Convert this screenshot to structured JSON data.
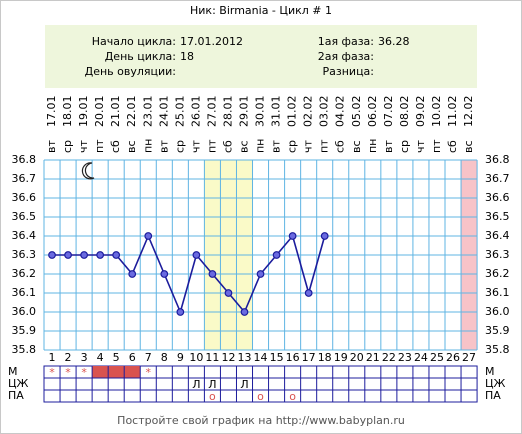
{
  "chart_data": {
    "type": "line",
    "title": "Ник: Birmania - Цикл # 1",
    "info_left": [
      {
        "label": "Начало цикла:",
        "value": "17.01.2012"
      },
      {
        "label": "День цикла:",
        "value": 18
      },
      {
        "label": "День овуляции:",
        "value": null
      }
    ],
    "info_right": [
      {
        "label": "1ая фаза:",
        "value": 36.28
      },
      {
        "label": "2ая фаза:",
        "value": null
      },
      {
        "label": "Разница:",
        "value": null
      }
    ],
    "categories": [
      1,
      2,
      3,
      4,
      5,
      6,
      7,
      8,
      9,
      10,
      11,
      12,
      13,
      14,
      15,
      16,
      17,
      18,
      19,
      20,
      21,
      22,
      23,
      24,
      25,
      26,
      27
    ],
    "dates": [
      "17.01",
      "18.01",
      "19.01",
      "20.01",
      "21.01",
      "22.01",
      "23.01",
      "24.01",
      "25.01",
      "26.01",
      "27.01",
      "28.01",
      "29.01",
      "30.01",
      "31.01",
      "01.02",
      "02.02",
      "03.02",
      "04.02",
      "05.02",
      "06.02",
      "07.02",
      "08.02",
      "09.02",
      "10.02",
      "11.02",
      "12.02"
    ],
    "weekdays": [
      "вт",
      "ср",
      "чт",
      "пт",
      "сб",
      "вс",
      "пн",
      "вт",
      "ср",
      "чт",
      "пт",
      "сб",
      "вс",
      "пн",
      "вт",
      "ср",
      "чт",
      "пт",
      "сб",
      "вс",
      "пн",
      "вт",
      "ср",
      "чт",
      "пт",
      "сб",
      "вс"
    ],
    "values": [
      36.3,
      36.3,
      36.3,
      36.3,
      36.3,
      36.2,
      36.4,
      36.2,
      36.0,
      36.3,
      36.2,
      36.1,
      36.0,
      36.2,
      36.3,
      36.4,
      36.1,
      36.4,
      null,
      null,
      null,
      null,
      null,
      null,
      null,
      null,
      null
    ],
    "color": "#1c1c9c",
    "ylim": [
      35.8,
      36.8
    ],
    "yticks": [
      35.8,
      35.9,
      {
        "value": 36,
        "label": "36.0"
      },
      36.1,
      36.2,
      36.3,
      36.4,
      36.5,
      36.6,
      36.7,
      36.8
    ],
    "grid": true,
    "highlight_days": [
      11,
      12,
      13
    ],
    "highlight_color": "#fafac8",
    "end_days": [
      27
    ],
    "end_color": "#f7c3c8",
    "rows": [
      {
        "name": "М",
        "marks": [
          {
            "day": 1,
            "label": "*"
          },
          {
            "day": 2,
            "label": "*"
          },
          {
            "day": 3,
            "label": "*"
          },
          {
            "day": 7,
            "label": "*"
          }
        ],
        "filled_days": [
          4,
          5,
          6
        ],
        "fill_color": "#d9534f"
      },
      {
        "name": "ЦЖ",
        "marks": [
          {
            "day": 10,
            "label": "Л"
          },
          {
            "day": 11,
            "label": "Л"
          },
          {
            "day": 13,
            "label": "Л"
          }
        ]
      },
      {
        "name": "ПА",
        "marks": [
          {
            "day": 11,
            "label": "о"
          },
          {
            "day": 14,
            "label": "о"
          },
          {
            "day": 16,
            "label": "о"
          }
        ]
      }
    ],
    "footer": "Постройте свой график на http://www.babyplan.ru"
  }
}
